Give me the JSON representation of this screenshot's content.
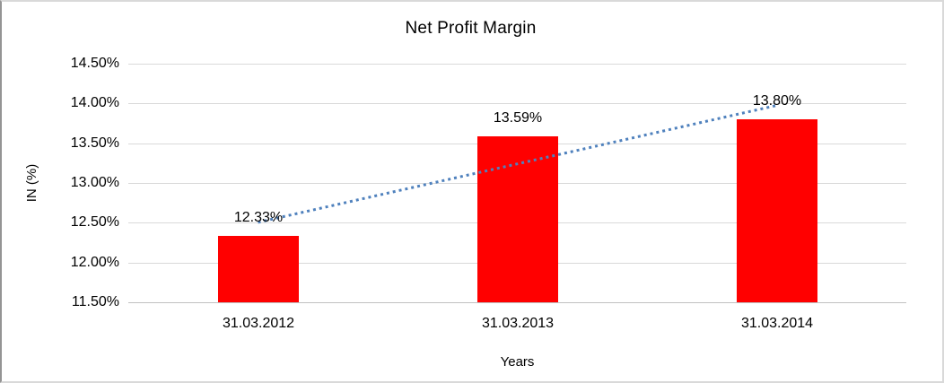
{
  "chart_data": {
    "type": "bar",
    "title": "Net Profit Margin",
    "xlabel": "Years",
    "ylabel": "IN (%)",
    "categories": [
      "31.03.2012",
      "31.03.2013",
      "31.03.2014"
    ],
    "values": [
      12.33,
      13.59,
      13.8
    ],
    "data_labels": [
      "12.33%",
      "13.59%",
      "13.80%"
    ],
    "series_name": "Net Profit Margin",
    "y_ticks": [
      "14.50%",
      "14.00%",
      "13.50%",
      "13.00%",
      "12.50%",
      "12.00%",
      "11.50%"
    ],
    "y_tick_values": [
      14.5,
      14.0,
      13.5,
      13.0,
      12.5,
      12.0,
      11.5
    ],
    "ylim": [
      11.5,
      14.5
    ],
    "grid": true,
    "legend": false,
    "bar_color": "#ff0000",
    "grid_color": "#d9d9d9",
    "axis_line_color": "#c0c0c0",
    "text_color": "#000000",
    "trendline": {
      "type": "linear",
      "style": "dotted",
      "color": "#4f81bd",
      "start_value": 12.505,
      "end_value": 13.975
    }
  }
}
